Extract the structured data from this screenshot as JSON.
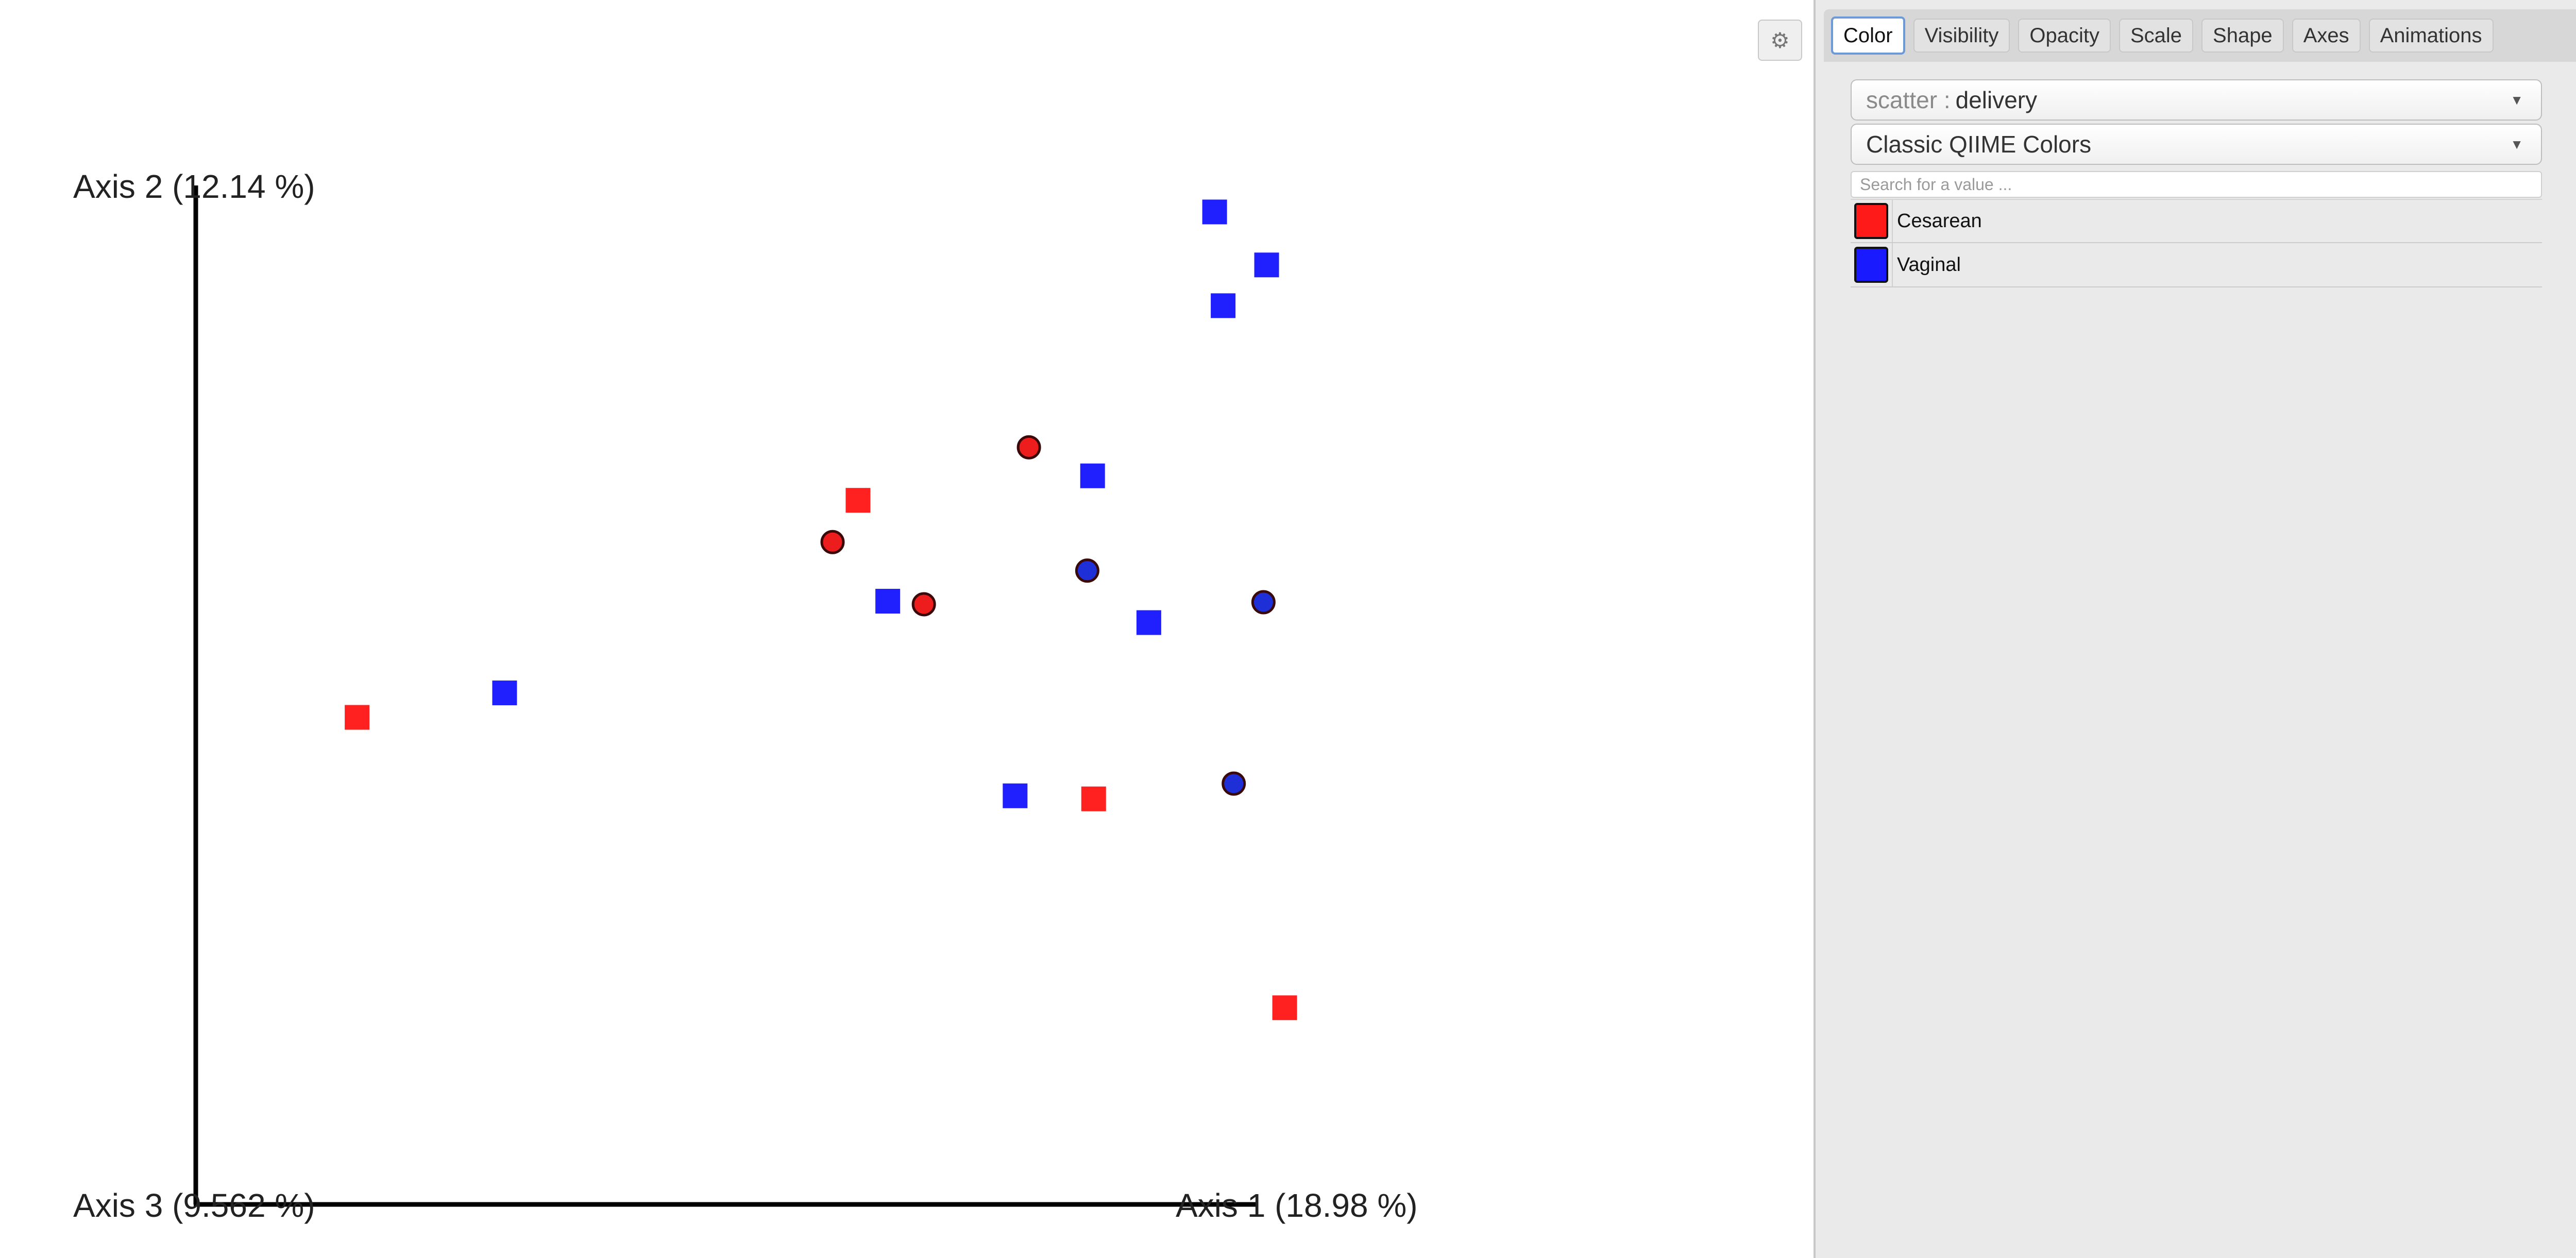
{
  "plot": {
    "axes": {
      "axis1": "Axis 1 (18.98 %)",
      "axis2": "Axis 2 (12.14 %)",
      "axis3": "Axis 3 (9.562 %)"
    },
    "points": [
      {
        "shape": "square",
        "color": "#ff2020",
        "x": 0.152,
        "y": 0.478
      },
      {
        "shape": "square",
        "color": "#2020ff",
        "x": 0.291,
        "y": 0.502
      },
      {
        "shape": "square",
        "color": "#2020ff",
        "x": 0.96,
        "y": 0.974
      },
      {
        "shape": "square",
        "color": "#2020ff",
        "x": 1.009,
        "y": 0.922
      },
      {
        "shape": "square",
        "color": "#2020ff",
        "x": 0.968,
        "y": 0.882
      },
      {
        "shape": "square",
        "color": "#2020ff",
        "x": 0.652,
        "y": 0.592
      },
      {
        "shape": "square",
        "color": "#ff2020",
        "x": 0.624,
        "y": 0.691
      },
      {
        "shape": "square",
        "color": "#2020ff",
        "x": 0.845,
        "y": 0.715
      },
      {
        "shape": "square",
        "color": "#ff2020",
        "x": 0.846,
        "y": 0.398
      },
      {
        "shape": "square",
        "color": "#2020ff",
        "x": 0.772,
        "y": 0.401
      },
      {
        "shape": "square",
        "color": "#2020ff",
        "x": 0.898,
        "y": 0.571
      },
      {
        "shape": "square",
        "color": "#ff2020",
        "x": 1.026,
        "y": 0.193
      },
      {
        "shape": "sphere",
        "color": "#ee1d1d",
        "x": 0.785,
        "y": 0.743
      },
      {
        "shape": "sphere",
        "color": "#ee1d1d",
        "x": 0.6,
        "y": 0.65
      },
      {
        "shape": "sphere",
        "color": "#ee1d1d",
        "x": 0.686,
        "y": 0.589
      },
      {
        "shape": "sphere",
        "color": "#1f2fd8",
        "x": 0.84,
        "y": 0.622
      },
      {
        "shape": "sphere",
        "color": "#1f2fd8",
        "x": 1.006,
        "y": 0.591
      },
      {
        "shape": "sphere",
        "color": "#1f2fd8",
        "x": 0.978,
        "y": 0.413
      }
    ]
  },
  "toolbar": {
    "settings_icon": "gear-icon"
  },
  "tabs": [
    "Color",
    "Visibility",
    "Opacity",
    "Scale",
    "Shape",
    "Axes",
    "Animations"
  ],
  "color_panel": {
    "category_prefix": "scatter : ",
    "category_value": "delivery",
    "colormap": "Classic QIIME Colors",
    "search_placeholder": "Search for a value ...",
    "legend": [
      {
        "label": "Cesarean",
        "color": "#ff1a1a"
      },
      {
        "label": "Vaginal",
        "color": "#1a1aff"
      }
    ]
  }
}
